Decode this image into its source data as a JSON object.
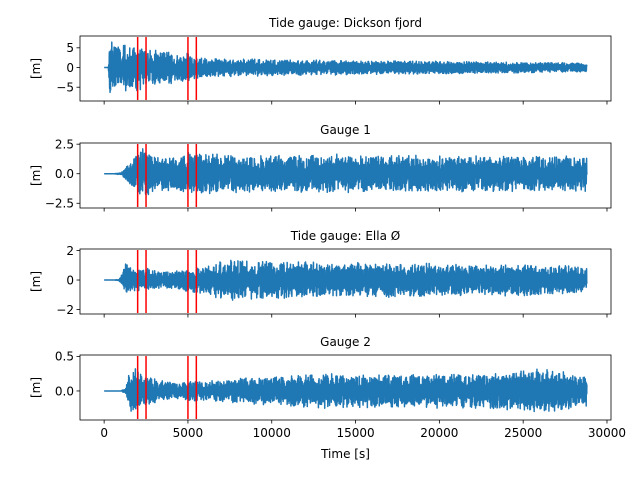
{
  "chart_data": [
    {
      "type": "line",
      "title": "Tide gauge: Dickson fjord",
      "ylabel": "[m]",
      "xlabel": "",
      "xlim": [
        -1440,
        30240
      ],
      "ylim": [
        -8.5,
        8.0
      ],
      "yticks": [
        -5,
        0,
        5
      ],
      "yticklabels": [
        "−5",
        "0",
        "5"
      ],
      "xticks": [
        0,
        5000,
        10000,
        15000,
        20000,
        25000,
        30000
      ],
      "xticklabels": [],
      "color": "#1f77b4",
      "markers_x": [
        2000,
        2500,
        5000,
        5500
      ],
      "marker_color": "#ff0000",
      "series": [
        {
          "x": [
            0,
            240,
            320,
            400,
            480,
            560,
            640,
            800,
            960,
            1120,
            1280,
            1440,
            1600,
            1760,
            1920,
            2080,
            2240,
            2400,
            2560,
            2720,
            2880,
            3200,
            3520,
            3840,
            4160,
            4480,
            4800,
            5120,
            5440,
            5760,
            6080,
            6400,
            7000,
            8000,
            9000,
            10000,
            11000,
            12000,
            13000,
            14000,
            15000,
            16000,
            17000,
            18000,
            19000,
            20000,
            21000,
            22000,
            23000,
            24000,
            25000,
            26000,
            27000,
            28000,
            28800
          ],
          "amp": [
            0,
            0,
            6.5,
            6.8,
            6.5,
            6.0,
            6.2,
            6.0,
            5.6,
            5.8,
            6.0,
            6.2,
            5.5,
            5.8,
            6.6,
            6.2,
            5.4,
            5.6,
            4.8,
            4.4,
            4.6,
            4.2,
            4.0,
            4.4,
            3.8,
            3.6,
            4.2,
            3.4,
            2.8,
            2.6,
            2.6,
            2.4,
            2.4,
            2.3,
            2.2,
            2.1,
            2.0,
            2.0,
            1.9,
            1.9,
            1.8,
            1.8,
            1.7,
            1.7,
            1.6,
            1.6,
            1.6,
            1.5,
            1.5,
            1.4,
            1.4,
            1.3,
            1.3,
            1.2,
            1.1
          ]
        }
      ]
    },
    {
      "type": "line",
      "title": "Gauge 1",
      "ylabel": "[m]",
      "xlabel": "",
      "xlim": [
        -1440,
        30240
      ],
      "ylim": [
        -2.9,
        2.6
      ],
      "yticks": [
        -2.5,
        0.0,
        2.5
      ],
      "yticklabels": [
        "−2.5",
        "0.0",
        "2.5"
      ],
      "xticks": [
        0,
        5000,
        10000,
        15000,
        20000,
        25000,
        30000
      ],
      "xticklabels": [],
      "color": "#1f77b4",
      "markers_x": [
        2000,
        2500,
        5000,
        5500
      ],
      "marker_color": "#ff0000",
      "series": [
        {
          "x": [
            0,
            600,
            800,
            1000,
            1200,
            1400,
            1600,
            1800,
            2000,
            2300,
            2600,
            3000,
            3500,
            4000,
            4500,
            5000,
            5500,
            6000,
            7000,
            8000,
            9000,
            10000,
            11000,
            12000,
            13000,
            14000,
            15000,
            16000,
            17000,
            18000,
            19000,
            20000,
            21000,
            22000,
            23000,
            24000,
            25000,
            26000,
            27000,
            28000,
            28800
          ],
          "amp": [
            0,
            0,
            0.05,
            0.1,
            0.35,
            0.75,
            1.1,
            1.5,
            1.9,
            2.2,
            1.9,
            1.6,
            1.5,
            1.4,
            1.6,
            1.9,
            1.8,
            1.7,
            1.7,
            1.6,
            1.6,
            1.7,
            1.6,
            1.6,
            1.6,
            1.7,
            1.6,
            1.6,
            1.5,
            1.6,
            1.6,
            1.5,
            1.6,
            1.5,
            1.5,
            1.6,
            1.5,
            1.5,
            1.5,
            1.5,
            1.6
          ]
        }
      ]
    },
    {
      "type": "line",
      "title": "Tide gauge: Ella Ø",
      "ylabel": "[m]",
      "xlabel": "",
      "xlim": [
        -1440,
        30240
      ],
      "ylim": [
        -2.3,
        2.1
      ],
      "yticks": [
        -2,
        0,
        2
      ],
      "yticklabels": [
        "−2",
        "0",
        "2"
      ],
      "xticks": [
        0,
        5000,
        10000,
        15000,
        20000,
        25000,
        30000
      ],
      "xticklabels": [],
      "color": "#1f77b4",
      "markers_x": [
        2000,
        2500,
        5000,
        5500
      ],
      "marker_color": "#ff0000",
      "series": [
        {
          "x": [
            0,
            600,
            900,
            1100,
            1300,
            1500,
            1700,
            2000,
            2300,
            2600,
            3000,
            3500,
            4000,
            4500,
            5000,
            5500,
            6000,
            7000,
            8000,
            9000,
            10000,
            11000,
            12000,
            13000,
            14000,
            15000,
            16000,
            17000,
            18000,
            19000,
            20000,
            21000,
            22000,
            23000,
            24000,
            25000,
            26000,
            27000,
            28000,
            28800
          ],
          "amp": [
            0,
            0,
            0.05,
            0.5,
            1.2,
            1.0,
            0.7,
            0.8,
            0.7,
            0.8,
            0.7,
            0.6,
            0.6,
            0.7,
            0.8,
            0.9,
            1.0,
            1.3,
            1.4,
            1.3,
            1.3,
            1.2,
            1.3,
            1.2,
            1.1,
            1.2,
            1.1,
            1.2,
            1.1,
            1.2,
            1.1,
            1.1,
            1.0,
            1.0,
            1.1,
            1.1,
            1.0,
            1.0,
            1.0,
            1.0
          ]
        }
      ]
    },
    {
      "type": "line",
      "title": "Gauge 2",
      "ylabel": "[m]",
      "xlabel": "Time [s]",
      "xlim": [
        -1440,
        30240
      ],
      "ylim": [
        -0.42,
        0.52
      ],
      "yticks": [
        0.0,
        0.5
      ],
      "yticklabels": [
        "0.0",
        "0.5"
      ],
      "extra_yticklabels": [
        "0.0"
      ],
      "xticks": [
        0,
        5000,
        10000,
        15000,
        20000,
        25000,
        30000
      ],
      "xticklabels": [
        "0",
        "5000",
        "10000",
        "15000",
        "20000",
        "25000",
        "30000"
      ],
      "color": "#1f77b4",
      "markers_x": [
        2000,
        2500,
        5000,
        5500
      ],
      "marker_color": "#ff0000",
      "series": [
        {
          "x": [
            0,
            1000,
            1300,
            1500,
            1700,
            2000,
            2300,
            2600,
            3000,
            3500,
            4000,
            4500,
            5000,
            5500,
            6000,
            7000,
            8000,
            9000,
            10000,
            11000,
            12000,
            13000,
            14000,
            15000,
            16000,
            17000,
            18000,
            19000,
            20000,
            21000,
            22000,
            23000,
            24000,
            25000,
            26000,
            27000,
            28000,
            28800
          ],
          "amp": [
            0,
            0,
            0.05,
            0.3,
            0.35,
            0.3,
            0.25,
            0.22,
            0.18,
            0.15,
            0.12,
            0.12,
            0.14,
            0.16,
            0.14,
            0.16,
            0.18,
            0.2,
            0.22,
            0.22,
            0.24,
            0.25,
            0.25,
            0.25,
            0.24,
            0.25,
            0.24,
            0.25,
            0.25,
            0.24,
            0.26,
            0.27,
            0.28,
            0.3,
            0.32,
            0.3,
            0.26,
            0.22
          ]
        }
      ]
    }
  ]
}
